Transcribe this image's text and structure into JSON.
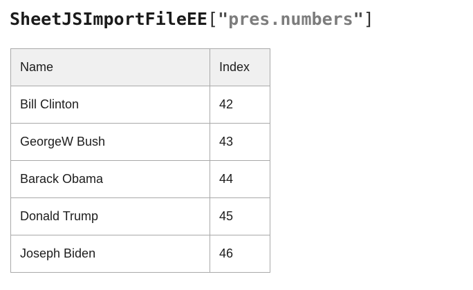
{
  "title": {
    "full_text": "SheetJSImportFileEE[\"pres.numbers\"]",
    "segments": [
      {
        "text": "SheetJSImportFileEE",
        "style": "identifier"
      },
      {
        "text": "[",
        "style": "bracket"
      },
      {
        "text": "\"",
        "style": "quote"
      },
      {
        "text": "pres.numbers",
        "style": "string"
      },
      {
        "text": "\"",
        "style": "quote"
      },
      {
        "text": "]",
        "style": "bracket"
      }
    ]
  },
  "colors": {
    "identifier": "#1b1b1b",
    "bracket": "#2d2d2d",
    "quote": "#4e4e4e",
    "string": "#7d7d7d",
    "text": "#1c1c1c",
    "table_border": "#a8a8a8",
    "header_bg": "#f0f0f0",
    "page_bg": "#ffffff"
  },
  "table": {
    "columns": [
      "Name",
      "Index"
    ],
    "rows": [
      {
        "name": "Bill Clinton",
        "index": "42"
      },
      {
        "name": "GeorgeW Bush",
        "index": "43"
      },
      {
        "name": "Barack Obama",
        "index": "44"
      },
      {
        "name": "Donald Trump",
        "index": "45"
      },
      {
        "name": "Joseph Biden",
        "index": "46"
      }
    ]
  }
}
